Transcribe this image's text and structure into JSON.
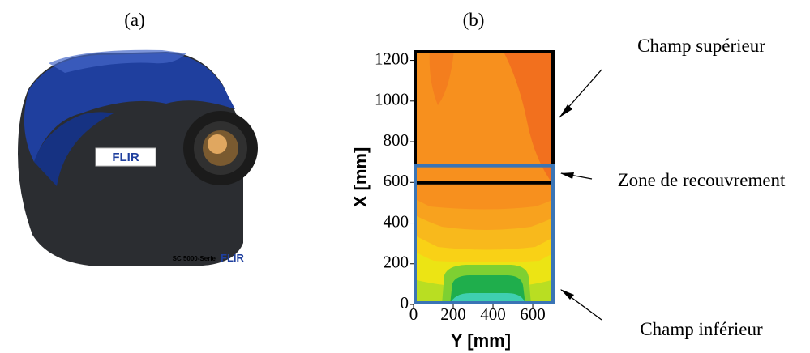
{
  "panel_a": {
    "label": "(a)",
    "logo_text": "FLIR",
    "model_text": "SC 5000-Serie",
    "brand_text": "FLIR"
  },
  "chart_data": {
    "type": "contour",
    "title": "(b)",
    "x_label": "Y [mm]",
    "y_label": "X [mm]",
    "xlim": [
      0,
      710
    ],
    "ylim": [
      0,
      1250
    ],
    "xticks": [
      0,
      200,
      400,
      600
    ],
    "yticks": [
      0,
      200,
      400,
      600,
      800,
      1000,
      1200
    ],
    "fields": [
      {
        "label": "Champ supérieur",
        "range": [
          590,
          1250
        ],
        "color": "#000000"
      },
      {
        "label": "Champ inférieur",
        "range": [
          0,
          690
        ],
        "color": "#3a74b5"
      }
    ],
    "overlap_label": "Zone de recouvrement"
  }
}
